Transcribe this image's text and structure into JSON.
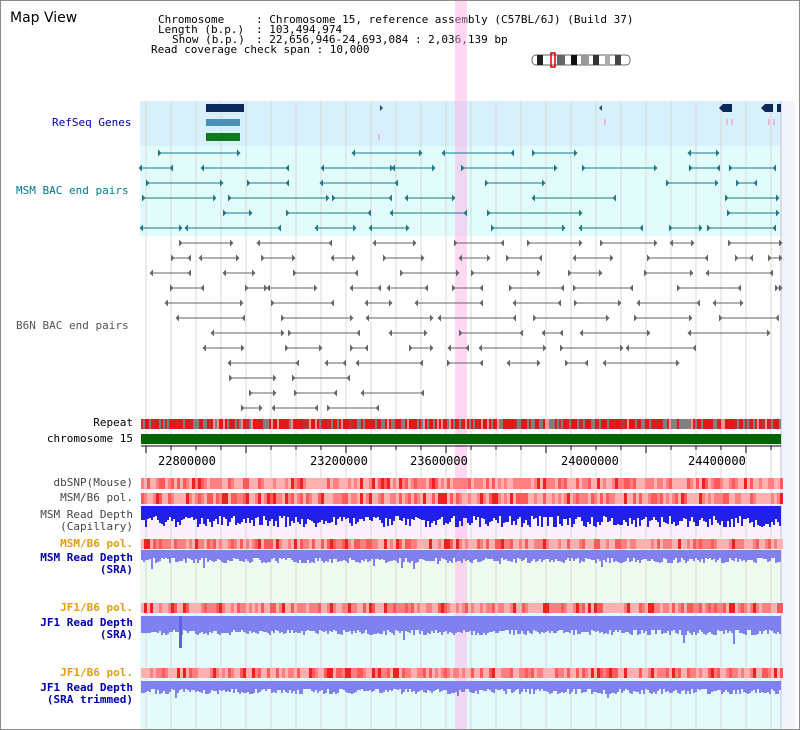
{
  "window": {
    "title": "Map View"
  },
  "info": {
    "chromosome_label": "Chromosome",
    "chromosome_value": ": Chromosome 15, reference assembly (C57BL/6J) (Build 37)",
    "length_label": "Length (b.p.)",
    "length_value": ": 103,494,974",
    "show_label": "Show (b.p.)",
    "show_value": ": 22,656,946-24,693,084 : 2,036,139 bp",
    "coverage_text": "Read coverage check span : 10,000"
  },
  "tracks": {
    "refseq": {
      "label": "RefSeq Genes",
      "color": "#0000aa"
    },
    "msm_bac": {
      "label": "MSM BAC end pairs",
      "color": "#007a8a"
    },
    "b6n_bac": {
      "label": "B6N BAC end pairs",
      "color": "#555555"
    },
    "repeat": {
      "label": "Repeat"
    },
    "chromosome": {
      "label": "chromosome 15",
      "color": "#006400"
    },
    "axis": {
      "ticks": [
        "22800000",
        "23200000",
        "23600000",
        "24000000",
        "24400000"
      ]
    },
    "dbsnp": {
      "label": "dbSNP(Mouse)",
      "color": "#444444"
    },
    "msm_b6_pol": {
      "label": "MSM/B6 pol.",
      "color": "#444444"
    },
    "msm_depth_cap": {
      "label1": "MSM Read Depth",
      "label2": "(Capillary)",
      "color": "#444444"
    },
    "msm_b6_pol2": {
      "label": "MSM/B6 pol.",
      "color": "#e89a10"
    },
    "msm_depth_sra": {
      "label1": "MSM Read Depth",
      "label2": "(SRA)",
      "color": "#0000aa"
    },
    "jf1_b6_pol": {
      "label": "JF1/B6 pol.",
      "color": "#e89a10"
    },
    "jf1_depth_sra": {
      "label1": "JF1 Read Depth",
      "label2": "(SRA)",
      "color": "#0000aa"
    },
    "jf1_b6_pol2": {
      "label": "JF1/B6 pol.",
      "color": "#e89a10"
    },
    "jf1_depth_trim": {
      "label1": "JF1 Read Depth",
      "label2": "(SRA trimmed)",
      "color": "#0000aa"
    }
  },
  "colors": {
    "gene_dark": "#0b2a5a",
    "gene_mid": "#4a90b8",
    "gene_green": "#0b7a1a",
    "chromosome_bar": "#006400",
    "highlight": "#ffaae6",
    "depth_blue": "#2020e8",
    "depth_lavender": "#8080ee",
    "pol_red": "#ff4040"
  }
}
